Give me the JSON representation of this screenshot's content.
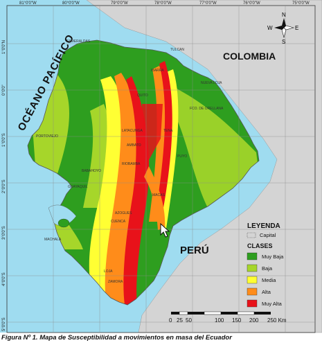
{
  "graticule": {
    "lon": [
      "81°0'0\"W",
      "80°0'0\"W",
      "79°0'0\"W",
      "78°0'0\"W",
      "77°0'0\"W",
      "76°0'0\"W",
      "75°0'0\"W"
    ],
    "lat": [
      "1°0'0\"N",
      "0°0'0\"",
      "1°0'0\"S",
      "2°0'0\"S",
      "3°0'0\"S",
      "4°0'0\"S",
      "5°0'0\"S"
    ]
  },
  "labels": {
    "ocean": "OCÉANO PACÍFICO",
    "colombia": "COLOMBIA",
    "peru": "PERÚ"
  },
  "cities": {
    "esmeraldas": "ESMERALDAS",
    "tulcan": "TULCAN",
    "ibarra": "IBARRA",
    "nueva_loja": "NUEVA LOJA",
    "quito": "QUITO",
    "coca": "FCO. DE ORELLANA",
    "portoviejo": "PORTOVIEJO",
    "latacunga": "LATACUNGA",
    "tena": "TENA",
    "ambato": "AMBATO",
    "puyo": "PUYO",
    "riobamba": "RIOBAMBA",
    "babahoyo": "BABAHOYO",
    "guayaquil": "GUAYAQUIL",
    "macas": "MACAS",
    "azogues": "AZOGUES",
    "cuenca": "CUENCA",
    "machala": "MACHALA",
    "loja": "LOJA",
    "zamora": "ZAMORA"
  },
  "compass": {
    "n": "N",
    "s": "S",
    "e": "E",
    "w": "W"
  },
  "legend": {
    "title": "LEYENDA",
    "capital": "Capital",
    "classes_title": "CLASES",
    "items": [
      {
        "label": "Muy Baja",
        "color": "#2e9e1f"
      },
      {
        "label": "Baja",
        "color": "#a6d62a"
      },
      {
        "label": "Media",
        "color": "#ffff33"
      },
      {
        "label": "Alta",
        "color": "#ff8c1a"
      },
      {
        "label": "Muy Alta",
        "color": "#e8121a"
      }
    ]
  },
  "scale_bar": {
    "ticks": [
      "0",
      "25",
      "50",
      "100",
      "150",
      "200",
      "250 Km"
    ]
  },
  "colors": {
    "ocean": "#9fdcf0",
    "neighbor_land": "#d4d4d4"
  },
  "caption": "Figura Nº 1. Mapa de Susceptibilidad a movimientos en masa del Ecuador"
}
